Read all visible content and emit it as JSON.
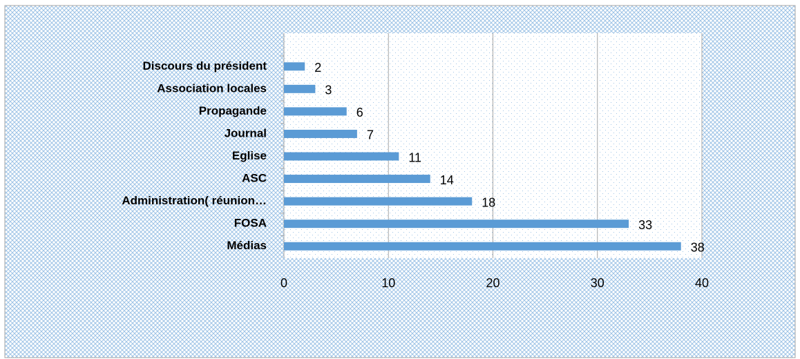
{
  "chart_data": {
    "type": "bar",
    "orientation": "horizontal",
    "categories": [
      "Discours du président",
      "Association locales",
      "Propagande",
      "Journal",
      "Eglise",
      "ASC",
      "Administration( réunion…",
      "FOSA",
      "Médias"
    ],
    "values": [
      2,
      3,
      6,
      7,
      11,
      14,
      18,
      33,
      38
    ],
    "color": "#5b9bd5",
    "xlim": [
      0,
      40
    ],
    "xticks": [
      0,
      10,
      20,
      30,
      40
    ],
    "grid": true
  }
}
